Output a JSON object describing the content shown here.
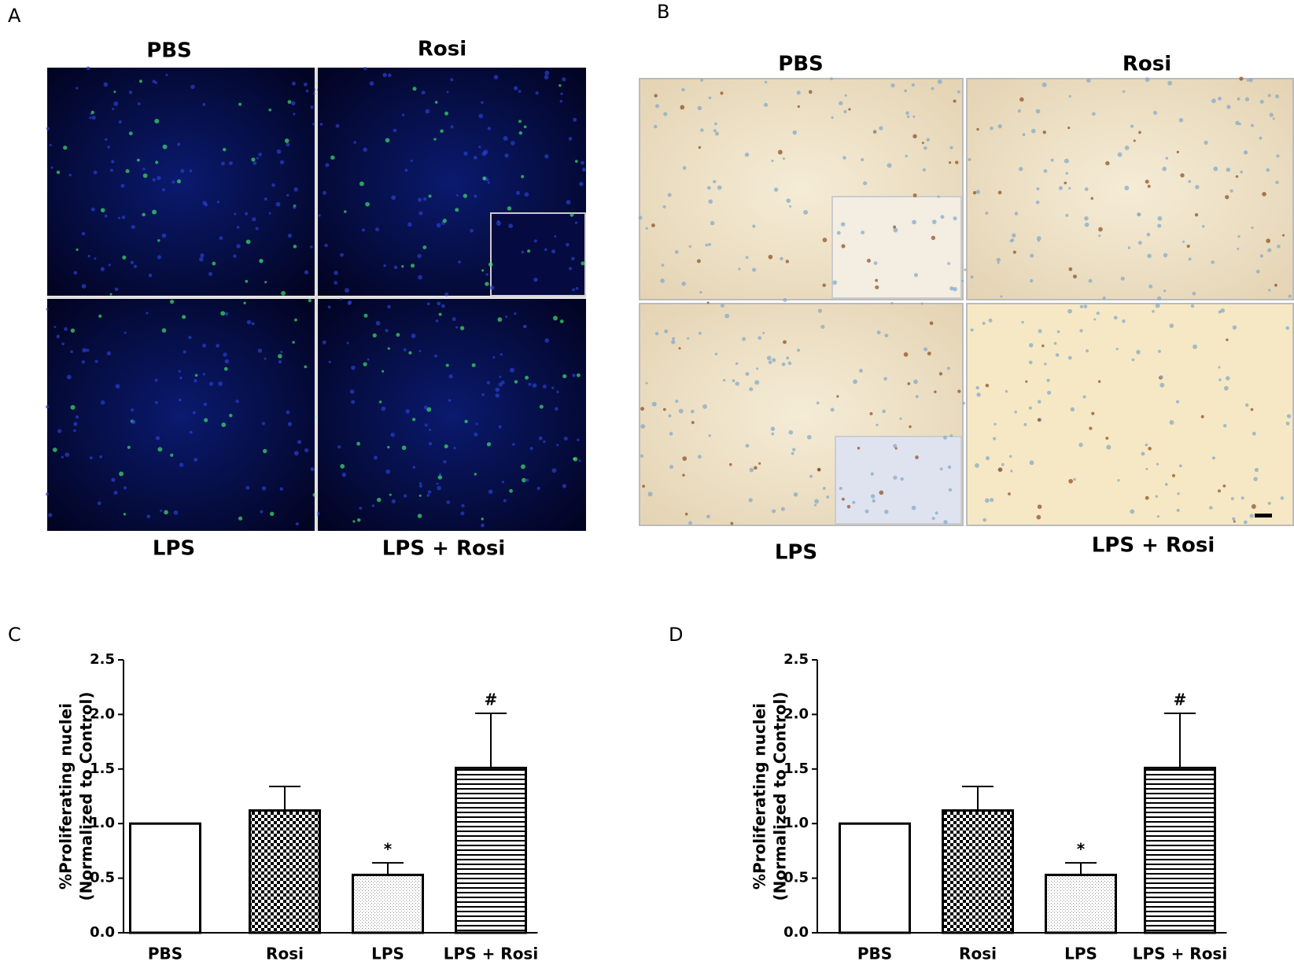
{
  "figure": {
    "panel_labels": [
      "A",
      "B",
      "C",
      "D"
    ],
    "image_panels": [
      {
        "labels": [
          "PBS",
          "Rosi",
          "LPS",
          "LPS + Rosi"
        ]
      },
      {
        "labels": [
          "PBS",
          "Rosi",
          "LPS",
          "LPS + Rosi"
        ]
      }
    ]
  },
  "chart_data": [
    {
      "type": "bar",
      "ylabel": [
        "%Proliferating nuclei",
        "(Normalized to Control)"
      ],
      "categories": [
        "PBS",
        "Rosi",
        "LPS",
        "LPS + Rosi"
      ],
      "values": [
        1.0,
        1.12,
        0.53,
        1.51
      ],
      "errors": [
        0,
        0.22,
        0.11,
        0.5
      ],
      "bar_labels": [
        null,
        null,
        "*",
        "#"
      ],
      "patterns": [
        "none",
        "checker",
        "dots",
        "hstripes"
      ],
      "color": "#000000",
      "ylim": [
        0,
        2.5
      ],
      "yticks": [
        {
          "value": 0,
          "label": "0.0"
        },
        {
          "value": 0.5,
          "label": "0.5"
        },
        {
          "value": 1,
          "label": "1.0"
        },
        {
          "value": 1.5,
          "label": "1.5"
        },
        {
          "value": 2,
          "label": "2.0"
        },
        {
          "value": 2.5,
          "label": "2.5"
        }
      ]
    },
    {
      "type": "bar",
      "ylabel": [
        "%Proliferating nuclei",
        "(Normalized to Control)"
      ],
      "categories": [
        "PBS",
        "Rosi",
        "LPS",
        "LPS + Rosi"
      ],
      "values": [
        1.0,
        1.12,
        0.53,
        1.51
      ],
      "errors": [
        0,
        0.22,
        0.11,
        0.5
      ],
      "bar_labels": [
        null,
        null,
        "*",
        "#"
      ],
      "patterns": [
        "none",
        "checker",
        "dots",
        "hstripes"
      ],
      "color": "#000000",
      "ylim": [
        0,
        2.5
      ],
      "yticks": [
        {
          "value": 0,
          "label": "0.0"
        },
        {
          "value": 0.5,
          "label": "0.5"
        },
        {
          "value": 1,
          "label": "1.0"
        },
        {
          "value": 1.5,
          "label": "1.5"
        },
        {
          "value": 2,
          "label": "2.0"
        },
        {
          "value": 2.5,
          "label": "2.5"
        }
      ]
    }
  ]
}
